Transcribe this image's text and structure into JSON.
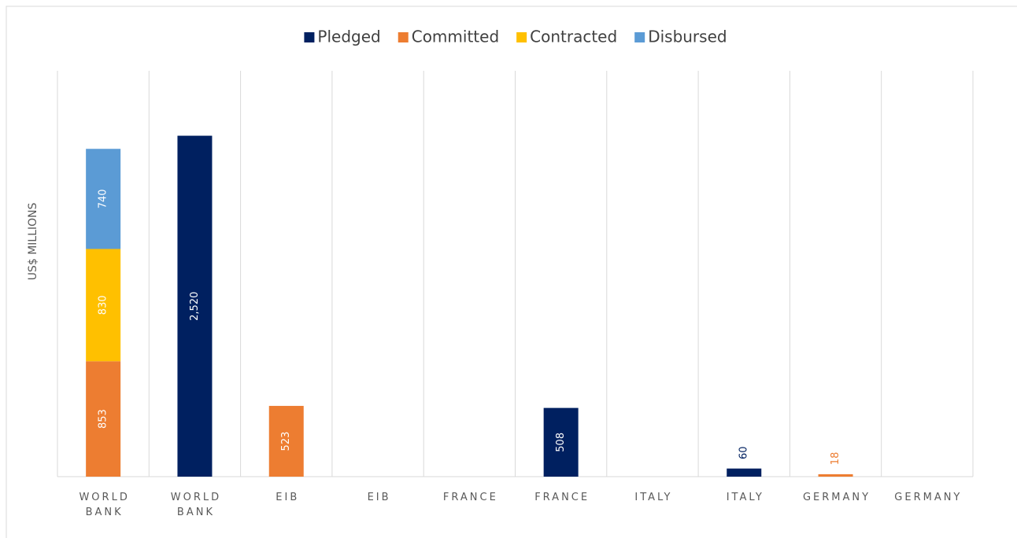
{
  "chart_data": {
    "type": "bar",
    "stacked": true,
    "y_label": "US$ MILLIONS",
    "categories": [
      "WORLD BANK",
      "WORLD BANK",
      "EIB",
      "EIB",
      "FRANCE",
      "FRANCE",
      "ITALY",
      "ITALY",
      "GERMANY",
      "GERMANY"
    ],
    "series": [
      {
        "name": "Pledged",
        "color": "#002060",
        "values": [
          null,
          2520,
          null,
          null,
          null,
          508,
          null,
          60,
          null,
          null
        ],
        "value_labels": [
          null,
          "2,520",
          null,
          null,
          null,
          "508",
          null,
          "60",
          null,
          null
        ]
      },
      {
        "name": "Committed",
        "color": "#ED7D31",
        "values": [
          853,
          null,
          523,
          null,
          null,
          null,
          null,
          null,
          18,
          null
        ],
        "value_labels": [
          "853",
          null,
          "523",
          null,
          null,
          null,
          null,
          null,
          "18",
          null
        ]
      },
      {
        "name": "Contracted",
        "color": "#FFC000",
        "values": [
          830,
          null,
          null,
          null,
          null,
          null,
          null,
          null,
          null,
          null
        ],
        "value_labels": [
          "830",
          null,
          null,
          null,
          null,
          null,
          null,
          null,
          null,
          null
        ]
      },
      {
        "name": "Disbursed",
        "color": "#5B9BD5",
        "values": [
          740,
          null,
          null,
          null,
          null,
          null,
          null,
          null,
          null,
          null
        ],
        "value_labels": [
          "740",
          null,
          null,
          null,
          null,
          null,
          null,
          null,
          null,
          null
        ]
      }
    ],
    "ylim": [
      0,
      3000
    ],
    "legend": "top"
  }
}
